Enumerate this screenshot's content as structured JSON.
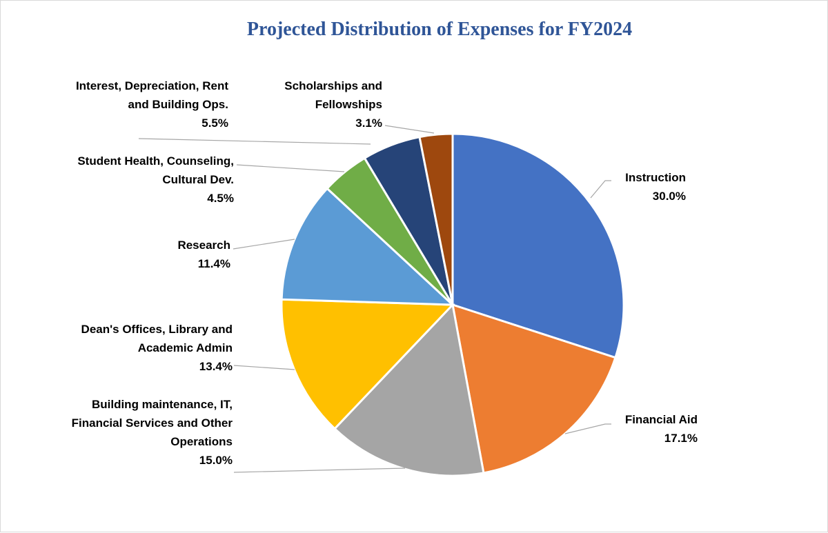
{
  "chart_data": {
    "type": "pie",
    "title": "Projected Distribution of Expenses for FY2024",
    "slices": [
      {
        "name": "Instruction",
        "name_lines": [
          "Instruction"
        ],
        "value": 30.0,
        "label": "30.0%",
        "color": "#4472c4"
      },
      {
        "name": "Financial Aid",
        "name_lines": [
          "Financial Aid"
        ],
        "value": 17.1,
        "label": "17.1%",
        "color": "#ed7d31"
      },
      {
        "name": "Building maintenance, IT, Financial Services and Other Operations",
        "name_lines": [
          "Building maintenance, IT,",
          "Financial Services and Other",
          "Operations"
        ],
        "value": 15.0,
        "label": "15.0%",
        "color": "#a5a5a5"
      },
      {
        "name": "Dean's Offices, Library and Academic Admin",
        "name_lines": [
          "Dean's Offices, Library and",
          "Academic Admin"
        ],
        "value": 13.4,
        "label": "13.4%",
        "color": "#ffc000"
      },
      {
        "name": "Research",
        "name_lines": [
          "Research"
        ],
        "value": 11.4,
        "label": "11.4%",
        "color": "#5b9bd5"
      },
      {
        "name": "Student Health, Counseling, Cultural Dev.",
        "name_lines": [
          "Student Health, Counseling,",
          "Cultural Dev."
        ],
        "value": 4.5,
        "label": "4.5%",
        "color": "#70ad47"
      },
      {
        "name": "Interest, Depreciation, Rent and Building Ops.",
        "name_lines": [
          "Interest, Depreciation, Rent",
          "and Building Ops."
        ],
        "value": 5.5,
        "label": "5.5%",
        "color": "#264478"
      },
      {
        "name": "Scholarships and Fellowships",
        "name_lines": [
          "Scholarships and",
          "Fellowships"
        ],
        "value": 3.1,
        "label": "3.1%",
        "color": "#9e480e"
      }
    ]
  }
}
